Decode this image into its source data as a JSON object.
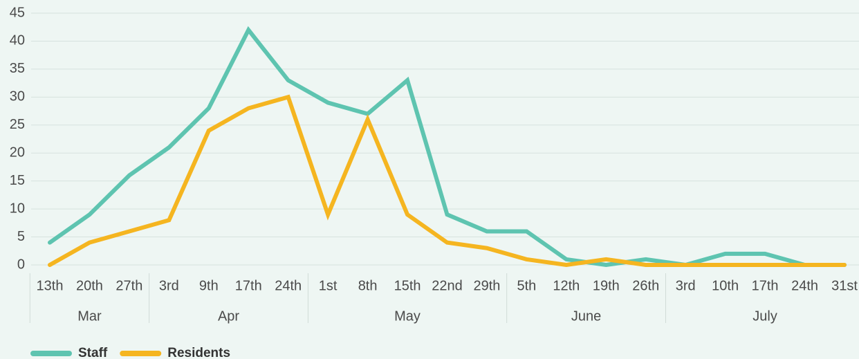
{
  "chart_data": {
    "type": "line",
    "groups": [
      {
        "label": "Mar",
        "categories": [
          "13th",
          "20th",
          "27th"
        ]
      },
      {
        "label": "Apr",
        "categories": [
          "3rd",
          "9th",
          "17th",
          "24th"
        ]
      },
      {
        "label": "May",
        "categories": [
          "1st",
          "8th",
          "15th",
          "22nd",
          "29th"
        ]
      },
      {
        "label": "June",
        "categories": [
          "5th",
          "12th",
          "19th",
          "26th"
        ]
      },
      {
        "label": "July",
        "categories": [
          "3rd",
          "10th",
          "17th",
          "24th",
          "31st"
        ]
      }
    ],
    "series": [
      {
        "name": "Staff",
        "color": "#5ec4b0",
        "values": [
          4,
          9,
          16,
          21,
          28,
          42,
          33,
          29,
          27,
          33,
          9,
          6,
          6,
          1,
          0,
          1,
          0,
          2,
          2,
          0,
          0
        ]
      },
      {
        "name": "Residents",
        "color": "#f5b520",
        "values": [
          0,
          4,
          6,
          8,
          24,
          28,
          30,
          9,
          26,
          9,
          4,
          3,
          1,
          0,
          1,
          0,
          0,
          0,
          0,
          0,
          0
        ]
      }
    ],
    "ylim": [
      0,
      45
    ],
    "yticks": [
      0,
      5,
      10,
      15,
      20,
      25,
      30,
      35,
      40,
      45
    ],
    "grid": true
  }
}
